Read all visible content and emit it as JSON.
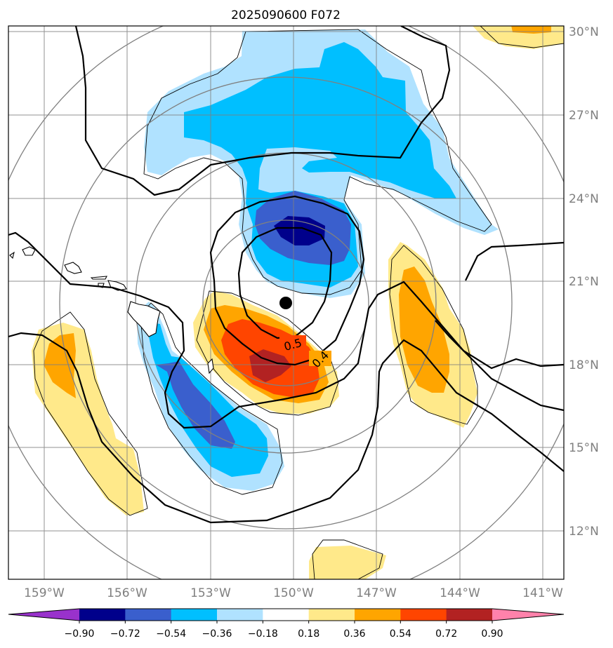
{
  "chart_data": {
    "type": "contour-map",
    "title": "2025090600 F072",
    "x_ticks": [
      "159°W",
      "156°W",
      "153°W",
      "150°W",
      "147°W",
      "144°W",
      "141°W"
    ],
    "y_ticks": [
      "30°N",
      "27°N",
      "24°N",
      "21°N",
      "18°N",
      "15°N",
      "12°N"
    ],
    "lon_range": [
      -160.3,
      -140.3
    ],
    "lat_range": [
      10.0,
      30.0
    ],
    "contour_labels": [
      "0.5",
      "0.4"
    ],
    "center_marker": {
      "lon": -150.3,
      "lat": 20.1
    },
    "colorbar": {
      "ticks": [
        "−0.90",
        "−0.72",
        "−0.54",
        "−0.36",
        "−0.18",
        "0.18",
        "0.36",
        "0.54",
        "0.72",
        "0.90"
      ],
      "colors": [
        "#9932cc",
        "#00008b",
        "#3a5fcd",
        "#00bfff",
        "#b0e2ff",
        "#ffffff",
        "#ffe98a",
        "#ffa500",
        "#ff4500",
        "#b22222",
        "#ff82ab"
      ]
    }
  }
}
